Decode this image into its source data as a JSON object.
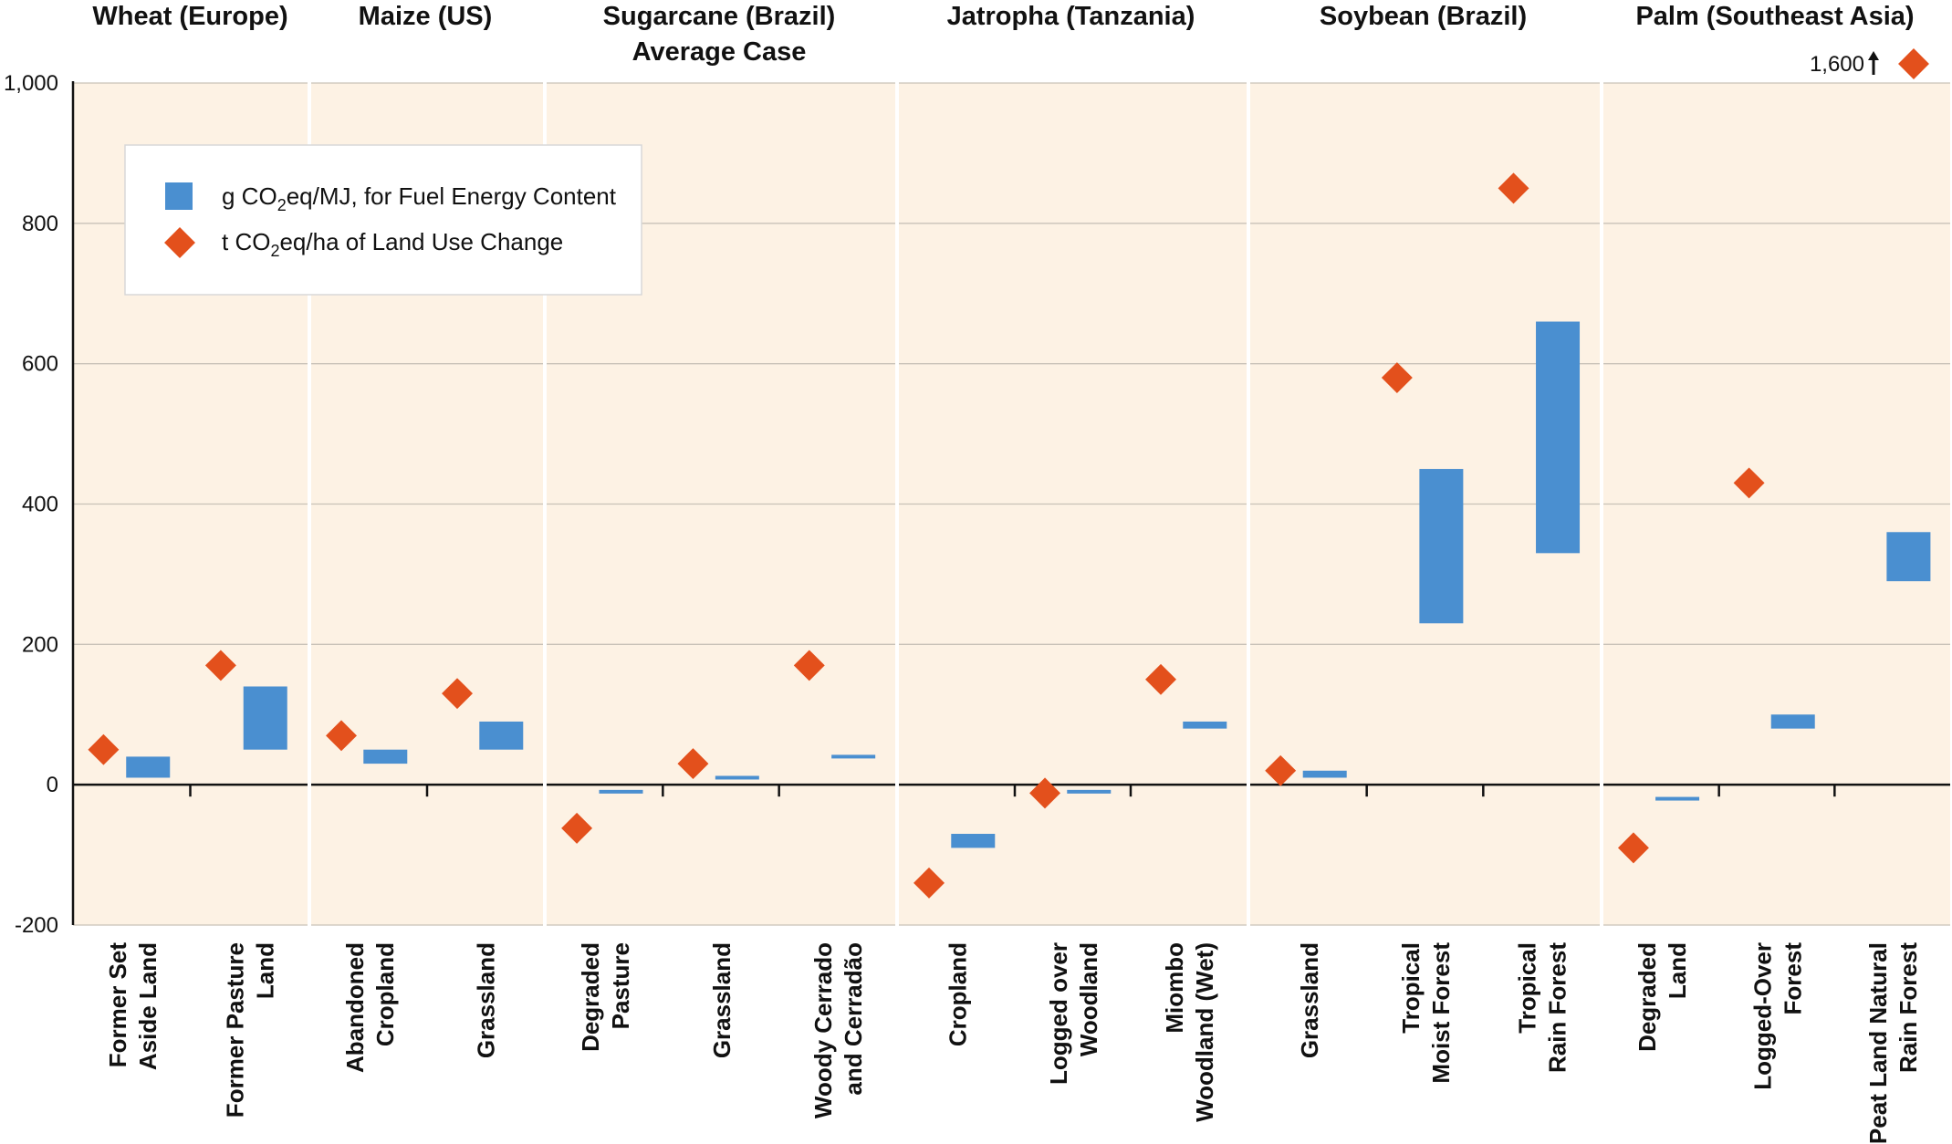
{
  "chart_data": {
    "type": "scatter",
    "ylim": [
      -200,
      1000
    ],
    "yticks": [
      -200,
      0,
      200,
      400,
      600,
      800,
      1000
    ],
    "ytick_labels": [
      "-200",
      "0",
      "200",
      "400",
      "600",
      "800",
      "1,000"
    ],
    "grid": true,
    "legend_position": "top-left",
    "series": [
      {
        "name_main": "g CO",
        "name_sub": "2",
        "name_rest": "eq/MJ, for Fuel Energy Content",
        "marker": "bar",
        "color": "#4a8fd0"
      },
      {
        "name_main": "t CO",
        "name_sub": "2",
        "name_rest": "eq/ha of Land Use Change",
        "marker": "diamond",
        "color": "#e3501c"
      }
    ],
    "panels": [
      {
        "title": [
          "Wheat (Europe)"
        ],
        "categories": [
          {
            "label": [
              "Former Set",
              "Aside Land"
            ],
            "bar": [
              10,
              40
            ],
            "diamond": 50
          },
          {
            "label": [
              "Former Pasture",
              "Land"
            ],
            "bar": [
              50,
              140
            ],
            "diamond": 170
          }
        ]
      },
      {
        "title": [
          "Maize (US)"
        ],
        "categories": [
          {
            "label": [
              "Abandoned",
              "Cropland"
            ],
            "bar": [
              30,
              50
            ],
            "diamond": 70
          },
          {
            "label": [
              "Grassland"
            ],
            "bar": [
              50,
              90
            ],
            "diamond": 130
          }
        ]
      },
      {
        "title": [
          "Sugarcane (Brazil)",
          "Average Case"
        ],
        "categories": [
          {
            "label": [
              "Degraded",
              "Pasture"
            ],
            "bar": [
              -12,
              -8
            ],
            "diamond": -62
          },
          {
            "label": [
              "Grassland"
            ],
            "bar": [
              8,
              12
            ],
            "diamond": 30
          },
          {
            "label": [
              "Woody Cerrado",
              "and Cerradão"
            ],
            "bar": [
              38,
              42
            ],
            "diamond": 170
          }
        ]
      },
      {
        "title": [
          "Jatropha (Tanzania)"
        ],
        "categories": [
          {
            "label": [
              "Cropland"
            ],
            "bar": [
              -90,
              -70
            ],
            "diamond": -140
          },
          {
            "label": [
              "Logged over",
              "Woodland"
            ],
            "bar": [
              -12,
              -8
            ],
            "diamond": -12
          },
          {
            "label": [
              "Miombo",
              "Woodland (Wet)"
            ],
            "bar": [
              80,
              90
            ],
            "diamond": 150
          }
        ]
      },
      {
        "title": [
          "Soybean (Brazil)"
        ],
        "categories": [
          {
            "label": [
              "Grassland"
            ],
            "bar": [
              10,
              20
            ],
            "diamond": 20
          },
          {
            "label": [
              "Tropical",
              "Moist Forest"
            ],
            "bar": [
              230,
              450
            ],
            "diamond": 580
          },
          {
            "label": [
              "Tropical",
              "Rain Forest"
            ],
            "bar": [
              330,
              660
            ],
            "diamond": 850
          }
        ]
      },
      {
        "title": [
          "Palm (Southeast Asia)"
        ],
        "categories": [
          {
            "label": [
              "Degraded",
              "Land"
            ],
            "bar": [
              -22,
              -18
            ],
            "diamond": -90
          },
          {
            "label": [
              "Logged-Over",
              "Forest"
            ],
            "bar": [
              80,
              100
            ],
            "diamond": 430
          },
          {
            "label": [
              "Peat Land Natural",
              "Rain Forest"
            ],
            "bar": [
              290,
              360
            ],
            "diamond": 1600,
            "diamond_offscale": true,
            "diamond_note": "1,600"
          }
        ]
      }
    ]
  }
}
